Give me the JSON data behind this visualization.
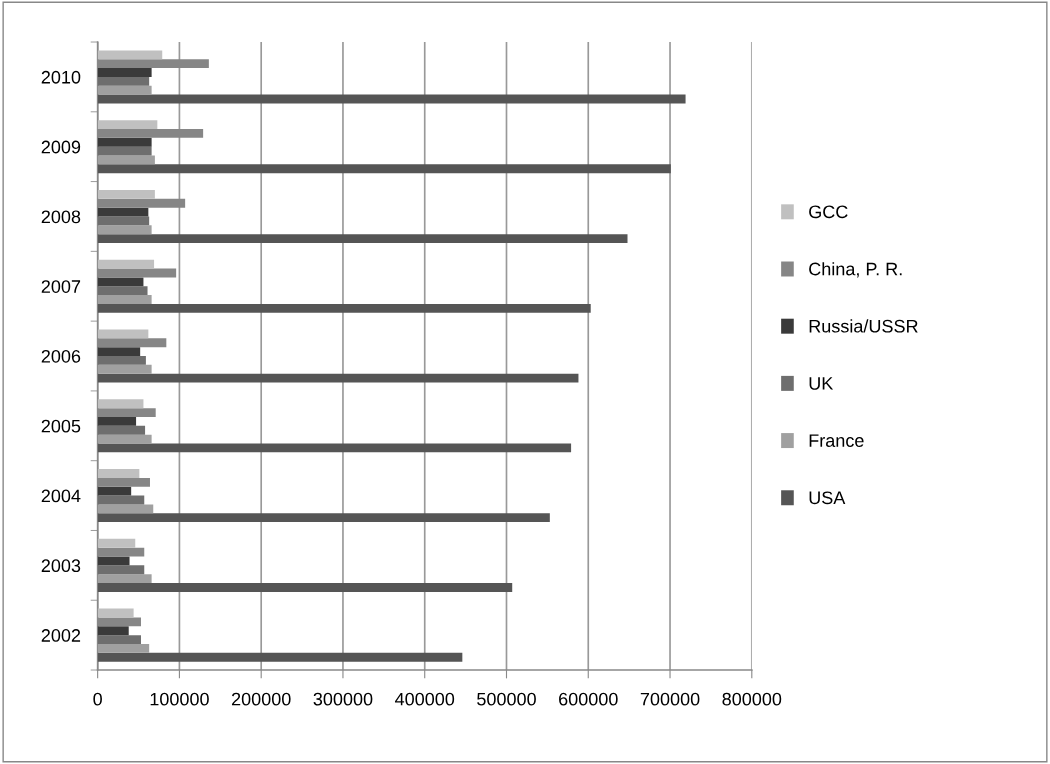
{
  "chart_data": {
    "type": "bar",
    "orientation": "horizontal",
    "categories": [
      "2010",
      "2009",
      "2008",
      "2007",
      "2006",
      "2005",
      "2004",
      "2003",
      "2002"
    ],
    "series": [
      {
        "name": "USA",
        "color": "#555555",
        "values": [
          719000,
          701000,
          648000,
          603000,
          588000,
          579000,
          553000,
          507000,
          446000
        ]
      },
      {
        "name": "France",
        "color": "#a0a0a0",
        "values": [
          66000,
          70000,
          66000,
          66000,
          66000,
          66000,
          68000,
          66000,
          63000
        ]
      },
      {
        "name": "UK",
        "color": "#6e6e6e",
        "values": [
          63000,
          66000,
          63000,
          61000,
          59000,
          58000,
          57000,
          57000,
          53000
        ]
      },
      {
        "name": "Russia/USSR",
        "color": "#3a3a3a",
        "values": [
          66000,
          66000,
          62000,
          56000,
          52000,
          47000,
          41000,
          39000,
          38000
        ]
      },
      {
        "name": "China, P. R.",
        "color": "#868686",
        "values": [
          136000,
          129000,
          107000,
          96000,
          84000,
          71000,
          64000,
          57000,
          53000
        ]
      },
      {
        "name": "GCC",
        "color": "#c0c0c0",
        "values": [
          79000,
          73000,
          70000,
          69000,
          62000,
          56000,
          51000,
          46000,
          44000
        ]
      }
    ],
    "xlim": [
      0,
      800000
    ],
    "xticks": [
      0,
      100000,
      200000,
      300000,
      400000,
      500000,
      600000,
      700000,
      800000
    ],
    "grid": "x",
    "legend": "right"
  }
}
